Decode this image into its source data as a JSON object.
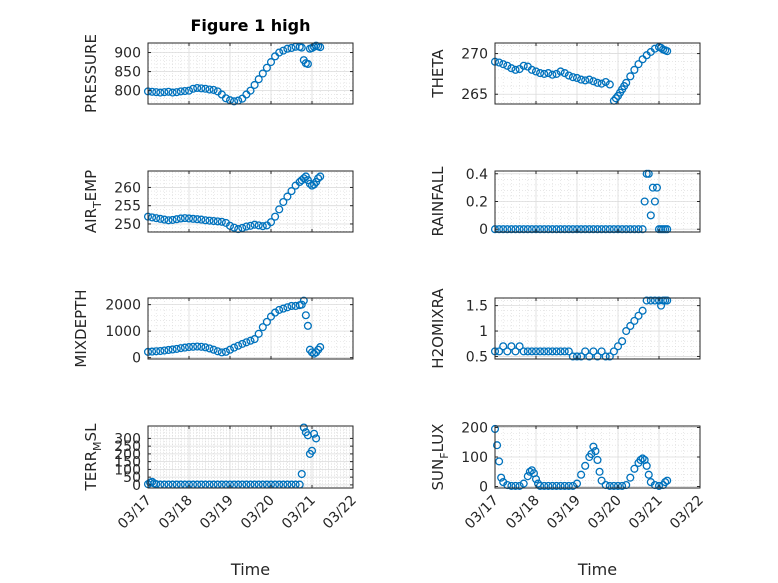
{
  "figure": {
    "title": "Figure 1 high",
    "marker_color": "#0072BD"
  },
  "chart_data": [
    {
      "type": "scatter",
      "marker": "circle",
      "grid": true,
      "minor_grid": true,
      "title": "Figure 1 high",
      "ylabel": "PRESSURE",
      "xlabel": "",
      "xlim": [
        0,
        5
      ],
      "xticks": [
        0,
        1,
        2,
        3,
        4,
        5
      ],
      "ylim": [
        765,
        925
      ],
      "yticks": [
        800,
        850,
        900
      ],
      "x": [
        0.0,
        0.1,
        0.2,
        0.3,
        0.4,
        0.5,
        0.6,
        0.7,
        0.8,
        0.9,
        1.0,
        1.1,
        1.2,
        1.3,
        1.4,
        1.5,
        1.6,
        1.7,
        1.8,
        1.9,
        2.0,
        2.1,
        2.2,
        2.3,
        2.4,
        2.5,
        2.6,
        2.7,
        2.8,
        2.9,
        3.0,
        3.1,
        3.2,
        3.3,
        3.4,
        3.5,
        3.6,
        3.7,
        3.75,
        3.8,
        3.85,
        3.9,
        3.95,
        4.0,
        4.05,
        4.1,
        4.15,
        4.2
      ],
      "values": [
        798,
        797,
        796,
        795,
        796,
        797,
        795,
        796,
        798,
        799,
        800,
        805,
        807,
        806,
        805,
        803,
        802,
        798,
        790,
        780,
        775,
        772,
        774,
        779,
        790,
        800,
        815,
        830,
        845,
        860,
        875,
        890,
        900,
        905,
        910,
        912,
        915,
        915,
        913,
        880,
        872,
        870,
        910,
        912,
        915,
        918,
        916,
        914
      ]
    },
    {
      "type": "scatter",
      "marker": "circle",
      "grid": true,
      "minor_grid": true,
      "ylabel": "THETA",
      "xlabel": "",
      "xlim": [
        0,
        5
      ],
      "xticks": [
        0,
        1,
        2,
        3,
        4,
        5
      ],
      "ylim": [
        263.8,
        271.3
      ],
      "yticks": [
        265,
        270
      ],
      "x": [
        0.0,
        0.1,
        0.2,
        0.3,
        0.4,
        0.5,
        0.6,
        0.7,
        0.8,
        0.9,
        1.0,
        1.1,
        1.2,
        1.3,
        1.4,
        1.5,
        1.6,
        1.7,
        1.8,
        1.9,
        2.0,
        2.1,
        2.2,
        2.3,
        2.4,
        2.5,
        2.6,
        2.7,
        2.8,
        2.9,
        2.95,
        3.0,
        3.05,
        3.1,
        3.15,
        3.2,
        3.3,
        3.4,
        3.5,
        3.6,
        3.7,
        3.8,
        3.9,
        4.0,
        4.05,
        4.1,
        4.15,
        4.2
      ],
      "values": [
        269,
        268.9,
        268.7,
        268.5,
        268.2,
        268,
        268.1,
        268.5,
        268.4,
        268,
        267.8,
        267.6,
        267.5,
        267.6,
        267.4,
        267.5,
        267.8,
        267.6,
        267.3,
        267.1,
        267,
        266.8,
        266.7,
        266.8,
        266.6,
        266.4,
        266.3,
        266.5,
        266.2,
        264.2,
        264.5,
        264.8,
        265.2,
        265.6,
        266,
        266.4,
        267.2,
        268,
        268.7,
        269.3,
        269.8,
        270.2,
        270.6,
        270.8,
        270.7,
        270.5,
        270.4,
        270.3
      ]
    },
    {
      "type": "scatter",
      "marker": "circle",
      "grid": true,
      "minor_grid": true,
      "ylabel": "AIR_TEMP",
      "ylabel_parts": [
        "AIR",
        "T",
        "EMP"
      ],
      "xlabel": "",
      "xlim": [
        0,
        5
      ],
      "xticks": [
        0,
        1,
        2,
        3,
        4,
        5
      ],
      "ylim": [
        247.8,
        264.5
      ],
      "yticks": [
        250,
        255,
        260
      ],
      "x": [
        0.0,
        0.1,
        0.2,
        0.3,
        0.4,
        0.5,
        0.6,
        0.7,
        0.8,
        0.9,
        1.0,
        1.1,
        1.2,
        1.3,
        1.4,
        1.5,
        1.6,
        1.7,
        1.8,
        1.9,
        2.0,
        2.1,
        2.2,
        2.3,
        2.4,
        2.5,
        2.6,
        2.7,
        2.8,
        2.9,
        3.0,
        3.1,
        3.2,
        3.3,
        3.4,
        3.5,
        3.6,
        3.7,
        3.75,
        3.8,
        3.85,
        3.9,
        3.95,
        4.0,
        4.05,
        4.1,
        4.15,
        4.2
      ],
      "values": [
        252,
        251.8,
        251.6,
        251.4,
        251.2,
        251,
        251.1,
        251.3,
        251.5,
        251.6,
        251.5,
        251.4,
        251.3,
        251.2,
        251,
        250.9,
        250.8,
        250.7,
        250.6,
        250.3,
        249.5,
        249,
        248.6,
        248.9,
        249.3,
        249.5,
        249.8,
        249.6,
        249.4,
        249.6,
        250.5,
        252,
        254,
        256,
        257.5,
        259,
        260.5,
        261.5,
        262,
        262.5,
        263,
        262,
        261,
        260.5,
        260.8,
        261.5,
        262.5,
        263
      ]
    },
    {
      "type": "scatter",
      "marker": "circle",
      "grid": true,
      "minor_grid": true,
      "ylabel": "RAINFALL",
      "xlabel": "",
      "xlim": [
        0,
        5
      ],
      "xticks": [
        0,
        1,
        2,
        3,
        4,
        5
      ],
      "ylim": [
        -0.02,
        0.42
      ],
      "yticks": [
        0,
        0.2,
        0.4
      ],
      "ytick_labels": [
        "0",
        "0.2",
        "0.4"
      ],
      "x": [
        0.0,
        0.1,
        0.2,
        0.3,
        0.4,
        0.5,
        0.6,
        0.7,
        0.8,
        0.9,
        1.0,
        1.1,
        1.2,
        1.3,
        1.4,
        1.5,
        1.6,
        1.7,
        1.8,
        1.9,
        2.0,
        2.1,
        2.2,
        2.3,
        2.4,
        2.5,
        2.6,
        2.7,
        2.8,
        2.9,
        3.0,
        3.1,
        3.2,
        3.3,
        3.4,
        3.5,
        3.6,
        3.65,
        3.7,
        3.75,
        3.8,
        3.85,
        3.9,
        3.95,
        4.0,
        4.05,
        4.1,
        4.15,
        4.2
      ],
      "values": [
        0,
        0,
        0,
        0,
        0,
        0,
        0,
        0,
        0,
        0,
        0,
        0,
        0,
        0,
        0,
        0,
        0,
        0,
        0,
        0,
        0,
        0,
        0,
        0,
        0,
        0,
        0,
        0,
        0,
        0,
        0,
        0,
        0,
        0,
        0,
        0,
        0,
        0.2,
        0.4,
        0.4,
        0.1,
        0.3,
        0.2,
        0.3,
        0,
        0,
        0,
        0,
        0
      ]
    },
    {
      "type": "scatter",
      "marker": "circle",
      "grid": true,
      "minor_grid": true,
      "ylabel": "MIXDEPTH",
      "xlabel": "",
      "xlim": [
        0,
        5
      ],
      "xticks": [
        0,
        1,
        2,
        3,
        4,
        5
      ],
      "ylim": [
        -50,
        2250
      ],
      "yticks": [
        0,
        1000,
        2000
      ],
      "x": [
        0.0,
        0.1,
        0.2,
        0.3,
        0.4,
        0.5,
        0.6,
        0.7,
        0.8,
        0.9,
        1.0,
        1.1,
        1.2,
        1.3,
        1.4,
        1.5,
        1.6,
        1.7,
        1.8,
        1.9,
        2.0,
        2.1,
        2.2,
        2.3,
        2.4,
        2.5,
        2.6,
        2.7,
        2.8,
        2.9,
        3.0,
        3.1,
        3.2,
        3.3,
        3.4,
        3.5,
        3.6,
        3.7,
        3.75,
        3.8,
        3.85,
        3.9,
        3.95,
        4.0,
        4.05,
        4.1,
        4.15,
        4.2
      ],
      "values": [
        220,
        230,
        240,
        250,
        270,
        290,
        310,
        330,
        360,
        380,
        400,
        410,
        420,
        410,
        390,
        350,
        300,
        240,
        200,
        220,
        300,
        380,
        450,
        520,
        580,
        640,
        700,
        900,
        1150,
        1350,
        1550,
        1700,
        1800,
        1850,
        1900,
        1950,
        1950,
        1980,
        2000,
        2150,
        1600,
        1200,
        300,
        200,
        150,
        200,
        300,
        400
      ]
    },
    {
      "type": "scatter",
      "marker": "circle",
      "grid": true,
      "minor_grid": true,
      "ylabel": "H2OMIXRA",
      "xlabel": "",
      "xlim": [
        0,
        5
      ],
      "xticks": [
        0,
        1,
        2,
        3,
        4,
        5
      ],
      "ylim": [
        0.45,
        1.65
      ],
      "yticks": [
        0.5,
        1,
        1.5
      ],
      "ytick_labels": [
        "0.5",
        "1",
        "1.5"
      ],
      "x": [
        0.0,
        0.1,
        0.2,
        0.3,
        0.4,
        0.5,
        0.6,
        0.7,
        0.8,
        0.9,
        1.0,
        1.1,
        1.2,
        1.3,
        1.4,
        1.5,
        1.6,
        1.7,
        1.8,
        1.9,
        2.0,
        2.1,
        2.2,
        2.3,
        2.4,
        2.5,
        2.6,
        2.7,
        2.8,
        2.9,
        3.0,
        3.1,
        3.2,
        3.3,
        3.4,
        3.5,
        3.6,
        3.7,
        3.8,
        3.9,
        4.0,
        4.05,
        4.1,
        4.15,
        4.2
      ],
      "values": [
        0.6,
        0.6,
        0.7,
        0.6,
        0.7,
        0.6,
        0.7,
        0.6,
        0.6,
        0.6,
        0.6,
        0.6,
        0.6,
        0.6,
        0.6,
        0.6,
        0.6,
        0.6,
        0.6,
        0.5,
        0.5,
        0.5,
        0.6,
        0.5,
        0.6,
        0.5,
        0.6,
        0.5,
        0.5,
        0.6,
        0.7,
        0.8,
        1.0,
        1.1,
        1.2,
        1.3,
        1.4,
        1.6,
        1.6,
        1.6,
        1.6,
        1.5,
        1.6,
        1.6,
        1.6
      ]
    },
    {
      "type": "scatter",
      "marker": "circle",
      "grid": true,
      "minor_grid": true,
      "ylabel": "TERR_MSL",
      "ylabel_parts": [
        "TERR",
        "M",
        "SL"
      ],
      "xlabel": "Time",
      "xlim": [
        0,
        5
      ],
      "xticks": [
        0,
        1,
        2,
        3,
        4,
        5
      ],
      "xtick_labels": [
        "03/17",
        "03/18",
        "03/19",
        "03/20",
        "03/21",
        "03/22"
      ],
      "ylim": [
        -20,
        380
      ],
      "yticks": [
        0,
        50,
        100,
        150,
        200,
        250,
        300
      ],
      "x": [
        0.0,
        0.05,
        0.1,
        0.15,
        0.2,
        0.3,
        0.4,
        0.5,
        0.6,
        0.7,
        0.8,
        0.9,
        1.0,
        1.1,
        1.2,
        1.3,
        1.4,
        1.5,
        1.6,
        1.7,
        1.8,
        1.9,
        2.0,
        2.1,
        2.2,
        2.3,
        2.4,
        2.5,
        2.6,
        2.7,
        2.8,
        2.9,
        3.0,
        3.1,
        3.2,
        3.3,
        3.4,
        3.5,
        3.6,
        3.7,
        3.75,
        3.8,
        3.85,
        3.9,
        3.95,
        4.0,
        4.05,
        4.1
      ],
      "values": [
        5,
        15,
        20,
        10,
        5,
        2,
        2,
        2,
        2,
        2,
        2,
        2,
        2,
        2,
        2,
        2,
        2,
        2,
        2,
        2,
        2,
        2,
        2,
        2,
        2,
        2,
        2,
        2,
        2,
        2,
        2,
        2,
        2,
        2,
        2,
        2,
        2,
        2,
        2,
        2,
        70,
        370,
        340,
        320,
        200,
        220,
        330,
        300
      ]
    },
    {
      "type": "scatter",
      "marker": "circle",
      "grid": true,
      "minor_grid": true,
      "ylabel": "SUN_FLUX",
      "ylabel_parts": [
        "SUN",
        "F",
        "LUX"
      ],
      "xlabel": "Time",
      "xlim": [
        0,
        5
      ],
      "xticks": [
        0,
        1,
        2,
        3,
        4,
        5
      ],
      "xtick_labels": [
        "03/17",
        "03/18",
        "03/19",
        "03/20",
        "03/21",
        "03/22"
      ],
      "ylim": [
        -5,
        205
      ],
      "yticks": [
        0,
        100,
        200
      ],
      "x": [
        0.0,
        0.05,
        0.1,
        0.15,
        0.2,
        0.3,
        0.4,
        0.5,
        0.6,
        0.7,
        0.8,
        0.85,
        0.9,
        0.95,
        1.0,
        1.05,
        1.1,
        1.2,
        1.3,
        1.4,
        1.5,
        1.6,
        1.7,
        1.8,
        1.9,
        2.0,
        2.1,
        2.2,
        2.3,
        2.35,
        2.4,
        2.45,
        2.5,
        2.55,
        2.6,
        2.7,
        2.8,
        2.9,
        3.0,
        3.1,
        3.2,
        3.3,
        3.4,
        3.5,
        3.55,
        3.6,
        3.65,
        3.7,
        3.75,
        3.8,
        3.9,
        4.0,
        4.1,
        4.15,
        4.2
      ],
      "values": [
        195,
        140,
        85,
        30,
        15,
        5,
        2,
        2,
        2,
        10,
        35,
        50,
        55,
        45,
        25,
        10,
        2,
        2,
        2,
        2,
        2,
        2,
        2,
        2,
        2,
        10,
        40,
        70,
        100,
        110,
        135,
        120,
        90,
        50,
        20,
        5,
        2,
        2,
        2,
        2,
        5,
        30,
        60,
        80,
        90,
        95,
        90,
        70,
        40,
        15,
        5,
        2,
        5,
        15,
        20
      ]
    }
  ]
}
